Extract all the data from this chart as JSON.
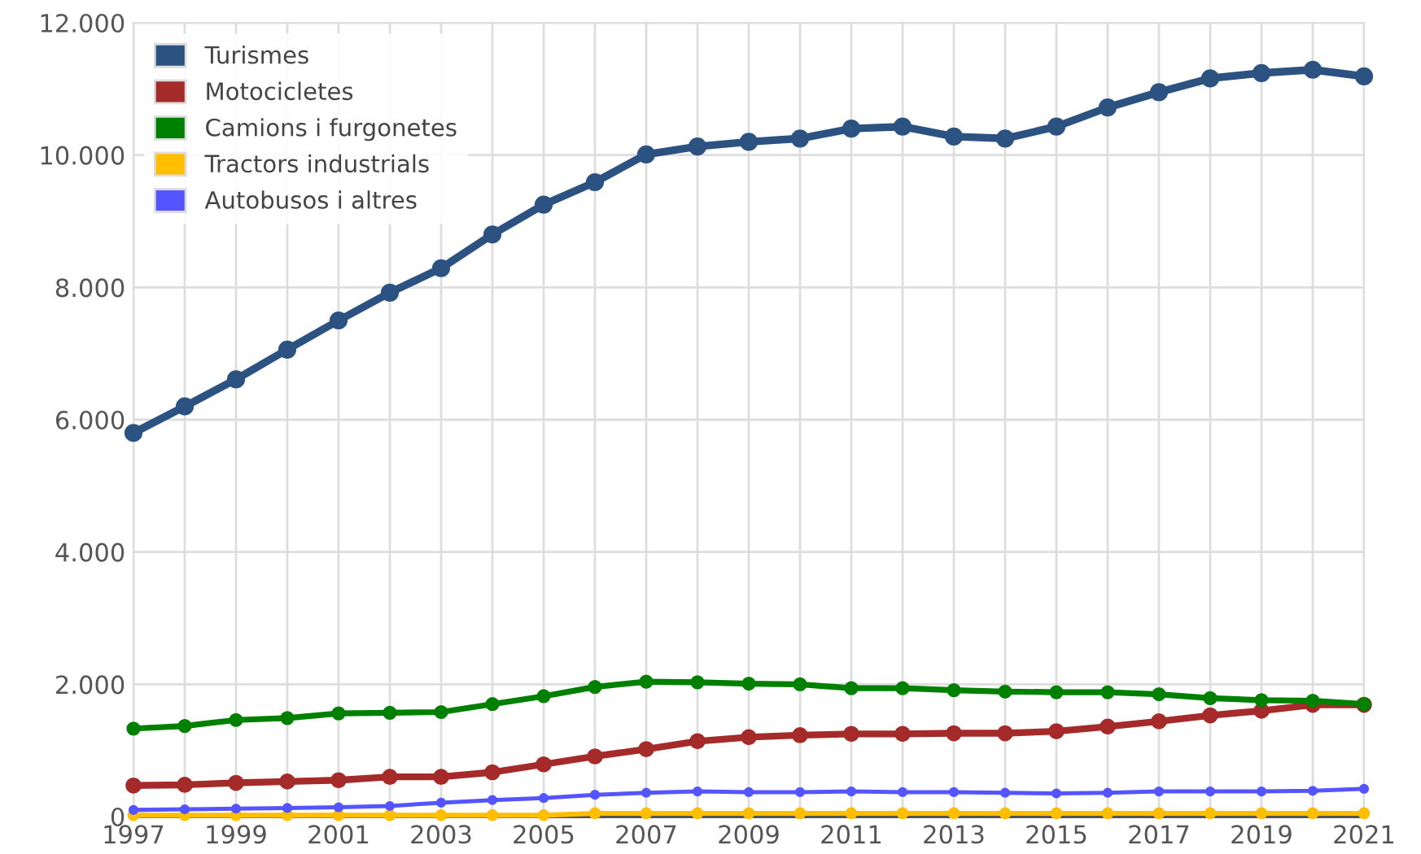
{
  "chart_data": {
    "type": "line",
    "x": [
      1997,
      1998,
      1999,
      2000,
      2001,
      2002,
      2003,
      2004,
      2005,
      2006,
      2007,
      2008,
      2009,
      2010,
      2011,
      2012,
      2013,
      2014,
      2015,
      2016,
      2017,
      2018,
      2019,
      2020,
      2021
    ],
    "series": [
      {
        "name": "Turismes",
        "color": "#2c5282",
        "values": [
          5800,
          6200,
          6610,
          7060,
          7500,
          7920,
          8290,
          8800,
          9250,
          9590,
          10010,
          10130,
          10200,
          10250,
          10400,
          10430,
          10280,
          10250,
          10430,
          10720,
          10950,
          11160,
          11240,
          11290,
          11190
        ]
      },
      {
        "name": "Motocicletes",
        "color": "#a52a2a",
        "values": [
          470,
          480,
          510,
          530,
          550,
          600,
          600,
          670,
          790,
          910,
          1020,
          1140,
          1200,
          1230,
          1250,
          1250,
          1260,
          1260,
          1290,
          1360,
          1440,
          1530,
          1600,
          1690,
          1690
        ]
      },
      {
        "name": "Camions i furgonetes",
        "color": "#008000",
        "values": [
          1330,
          1370,
          1460,
          1490,
          1560,
          1570,
          1580,
          1700,
          1820,
          1960,
          2040,
          2030,
          2010,
          2000,
          1940,
          1940,
          1910,
          1890,
          1880,
          1880,
          1850,
          1790,
          1760,
          1750,
          1700
        ]
      },
      {
        "name": "Tractors industrials",
        "color": "#ffbf00",
        "values": [
          20,
          20,
          20,
          20,
          20,
          20,
          20,
          20,
          20,
          50,
          50,
          50,
          50,
          50,
          50,
          50,
          50,
          50,
          50,
          50,
          50,
          50,
          50,
          50,
          50
        ]
      },
      {
        "name": "Autobusos i altres",
        "color": "#5555ff",
        "values": [
          100,
          110,
          120,
          130,
          140,
          160,
          210,
          250,
          280,
          330,
          360,
          380,
          370,
          370,
          380,
          370,
          370,
          360,
          350,
          360,
          380,
          380,
          380,
          390,
          420
        ]
      }
    ],
    "xlim": [
      1997,
      2021
    ],
    "xticks": [
      1997,
      {
        "value": 1998,
        "label": null
      },
      1999,
      {
        "value": 2000,
        "label": null
      },
      2001,
      {
        "value": 2002,
        "label": null
      },
      2003,
      {
        "value": 2004,
        "label": null
      },
      2005,
      {
        "value": 2006,
        "label": null
      },
      2007,
      {
        "value": 2008,
        "label": null
      },
      2009,
      {
        "value": 2010,
        "label": null
      },
      2011,
      {
        "value": 2012,
        "label": null
      },
      2013,
      {
        "value": 2014,
        "label": null
      },
      2015,
      {
        "value": 2016,
        "label": null
      },
      2017,
      {
        "value": 2018,
        "label": null
      },
      2019,
      {
        "value": 2020,
        "label": null
      },
      2021
    ],
    "ylim": [
      0,
      12000
    ],
    "yticks": [
      0,
      {
        "value": 2000,
        "label": "2.000"
      },
      {
        "value": 4000,
        "label": "4.000"
      },
      {
        "value": 6000,
        "label": "6.000"
      },
      {
        "value": 8000,
        "label": "8.000"
      },
      {
        "value": 10000,
        "label": "10.000"
      },
      {
        "value": 12000,
        "label": "12.000"
      }
    ],
    "grid": true,
    "legend": "top left",
    "marker": "circle",
    "line_style": "solid"
  }
}
